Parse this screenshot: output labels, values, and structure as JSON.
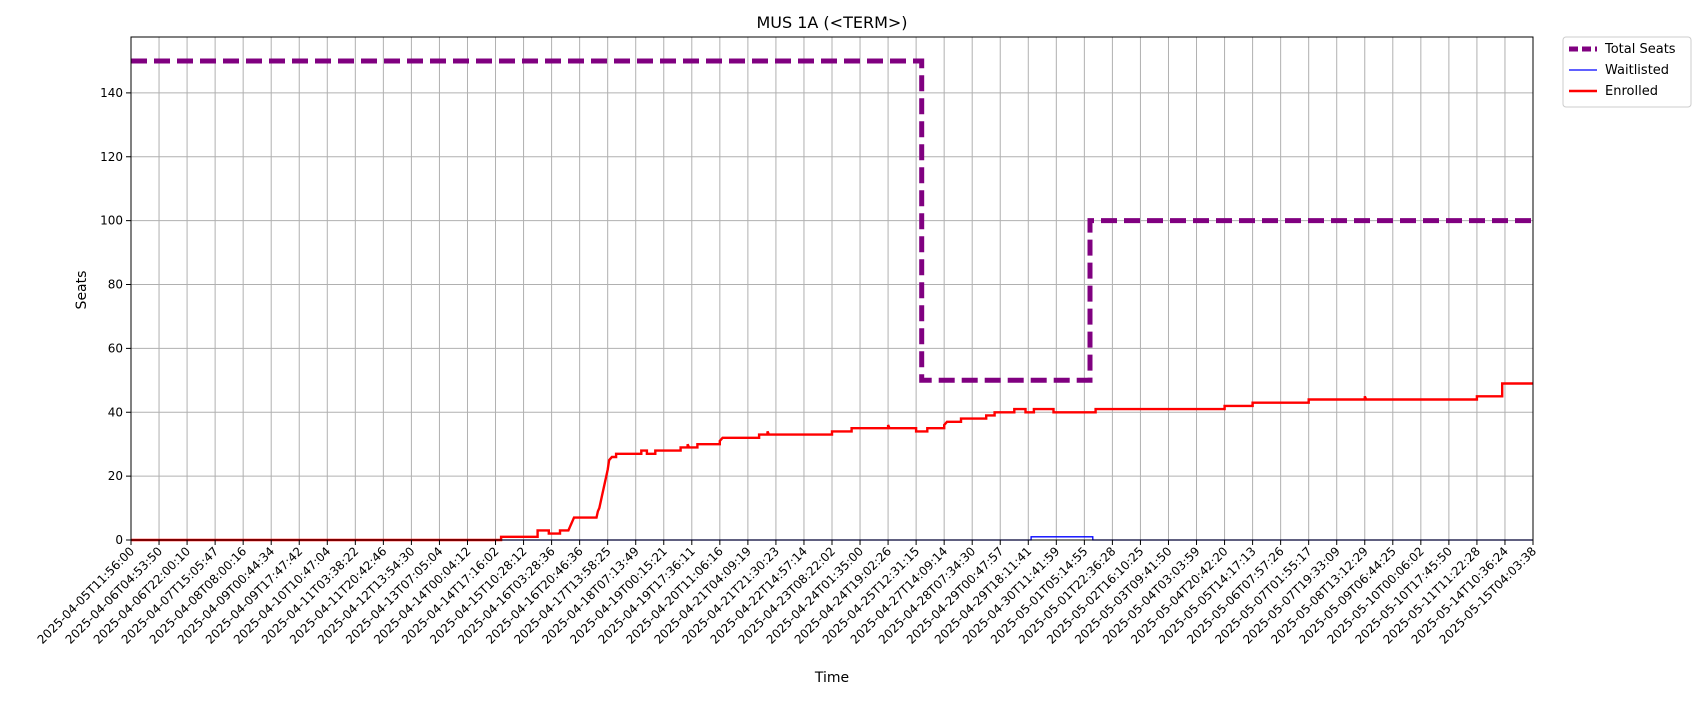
{
  "chart_data": {
    "type": "line",
    "title": "MUS 1A (<TERM>)",
    "xlabel": "Time",
    "ylabel": "Seats",
    "ylim": [
      0,
      157.5
    ],
    "yticks": [
      0,
      20,
      40,
      60,
      80,
      100,
      120,
      140
    ],
    "grid": true,
    "legend_position": "outside-top-right",
    "x_ticks": [
      "2025-04-05T11:56:00",
      "2025-04-06T04:53:50",
      "2025-04-06T22:00:10",
      "2025-04-07T15:05:47",
      "2025-04-08T08:00:16",
      "2025-04-09T00:44:34",
      "2025-04-09T17:47:42",
      "2025-04-10T10:47:04",
      "2025-04-11T03:38:22",
      "2025-04-11T20:42:46",
      "2025-04-12T13:54:30",
      "2025-04-13T07:05:04",
      "2025-04-14T00:04:12",
      "2025-04-14T17:16:02",
      "2025-04-15T10:28:12",
      "2025-04-16T03:28:36",
      "2025-04-16T20:46:36",
      "2025-04-17T13:58:25",
      "2025-04-18T07:13:49",
      "2025-04-19T00:15:21",
      "2025-04-19T17:36:11",
      "2025-04-20T11:06:16",
      "2025-04-21T04:09:19",
      "2025-04-21T21:30:23",
      "2025-04-22T14:57:14",
      "2025-04-23T08:22:02",
      "2025-04-24T01:35:00",
      "2025-04-24T19:02:26",
      "2025-04-25T12:31:15",
      "2025-04-27T14:09:14",
      "2025-04-28T07:34:30",
      "2025-04-29T00:47:57",
      "2025-04-29T18:11:41",
      "2025-04-30T11:41:59",
      "2025-05-01T05:14:55",
      "2025-05-01T22:36:28",
      "2025-05-02T16:10:25",
      "2025-05-03T09:41:50",
      "2025-05-04T03:03:59",
      "2025-05-04T20:42:20",
      "2025-05-05T14:17:13",
      "2025-05-06T07:57:26",
      "2025-05-07T01:55:17",
      "2025-05-07T19:33:09",
      "2025-05-08T13:12:29",
      "2025-05-09T06:44:25",
      "2025-05-10T00:06:02",
      "2025-05-10T17:45:50",
      "2025-05-11T11:22:28",
      "2025-05-14T10:36:24",
      "2025-05-15T04:03:38"
    ],
    "series": [
      {
        "name": "Total Seats",
        "color": "#800080",
        "style": "dashed",
        "points": [
          [
            0,
            150
          ],
          [
            28.2,
            150
          ],
          [
            28.2,
            50
          ],
          [
            34.2,
            50
          ],
          [
            34.2,
            100
          ],
          [
            50,
            100
          ]
        ]
      },
      {
        "name": "Waitlisted",
        "color": "#0000ff",
        "style": "solid",
        "points": [
          [
            0,
            0
          ],
          [
            32.1,
            0
          ],
          [
            32.1,
            1
          ],
          [
            34.3,
            1
          ],
          [
            34.3,
            0
          ],
          [
            50,
            0
          ]
        ]
      },
      {
        "name": "Enrolled",
        "color": "#ff0000",
        "style": "solid",
        "points": [
          [
            0,
            0
          ],
          [
            13.2,
            0
          ],
          [
            13.2,
            1
          ],
          [
            14.5,
            1
          ],
          [
            14.5,
            3
          ],
          [
            14.9,
            3
          ],
          [
            14.9,
            2
          ],
          [
            15.3,
            2
          ],
          [
            15.3,
            3
          ],
          [
            15.6,
            3
          ],
          [
            15.65,
            4
          ],
          [
            15.7,
            5
          ],
          [
            15.75,
            6
          ],
          [
            15.8,
            7
          ],
          [
            16.6,
            7
          ],
          [
            16.65,
            9
          ],
          [
            16.7,
            10
          ],
          [
            16.75,
            12
          ],
          [
            16.8,
            14
          ],
          [
            16.85,
            16
          ],
          [
            16.9,
            18
          ],
          [
            16.95,
            20
          ],
          [
            17.0,
            22
          ],
          [
            17.05,
            25
          ],
          [
            17.15,
            26
          ],
          [
            17.3,
            26
          ],
          [
            17.3,
            27
          ],
          [
            18.2,
            27
          ],
          [
            18.2,
            28
          ],
          [
            18.4,
            28
          ],
          [
            18.4,
            27
          ],
          [
            18.7,
            27
          ],
          [
            18.7,
            28
          ],
          [
            19.6,
            28
          ],
          [
            19.6,
            29
          ],
          [
            19.85,
            29
          ],
          [
            19.85,
            30
          ],
          [
            19.9,
            29
          ],
          [
            20.2,
            29
          ],
          [
            20.2,
            30
          ],
          [
            21.0,
            30
          ],
          [
            21.0,
            31
          ],
          [
            21.1,
            32
          ],
          [
            22.4,
            32
          ],
          [
            22.4,
            33
          ],
          [
            22.7,
            33
          ],
          [
            22.7,
            34
          ],
          [
            22.75,
            33
          ],
          [
            25.0,
            33
          ],
          [
            25.0,
            34
          ],
          [
            25.7,
            34
          ],
          [
            25.7,
            35
          ],
          [
            27.0,
            35
          ],
          [
            27.0,
            36
          ],
          [
            27.05,
            35
          ],
          [
            28.0,
            35
          ],
          [
            28.0,
            34
          ],
          [
            28.4,
            34
          ],
          [
            28.4,
            35
          ],
          [
            29.0,
            35
          ],
          [
            29.0,
            36
          ],
          [
            29.1,
            37
          ],
          [
            29.6,
            37
          ],
          [
            29.6,
            38
          ],
          [
            30.5,
            38
          ],
          [
            30.5,
            39
          ],
          [
            30.8,
            39
          ],
          [
            30.8,
            40
          ],
          [
            31.5,
            40
          ],
          [
            31.5,
            41
          ],
          [
            31.9,
            41
          ],
          [
            31.9,
            40
          ],
          [
            32.2,
            40
          ],
          [
            32.2,
            41
          ],
          [
            32.9,
            41
          ],
          [
            32.9,
            40
          ],
          [
            34.4,
            40
          ],
          [
            34.4,
            41
          ],
          [
            39.0,
            41
          ],
          [
            39.0,
            42
          ],
          [
            40.0,
            42
          ],
          [
            40.0,
            43
          ],
          [
            42.0,
            43
          ],
          [
            42.0,
            44
          ],
          [
            44.0,
            44
          ],
          [
            44.0,
            45
          ],
          [
            44.05,
            44
          ],
          [
            48.0,
            44
          ],
          [
            48.0,
            45
          ],
          [
            48.9,
            45
          ],
          [
            48.9,
            49
          ],
          [
            50,
            49
          ]
        ]
      }
    ]
  }
}
